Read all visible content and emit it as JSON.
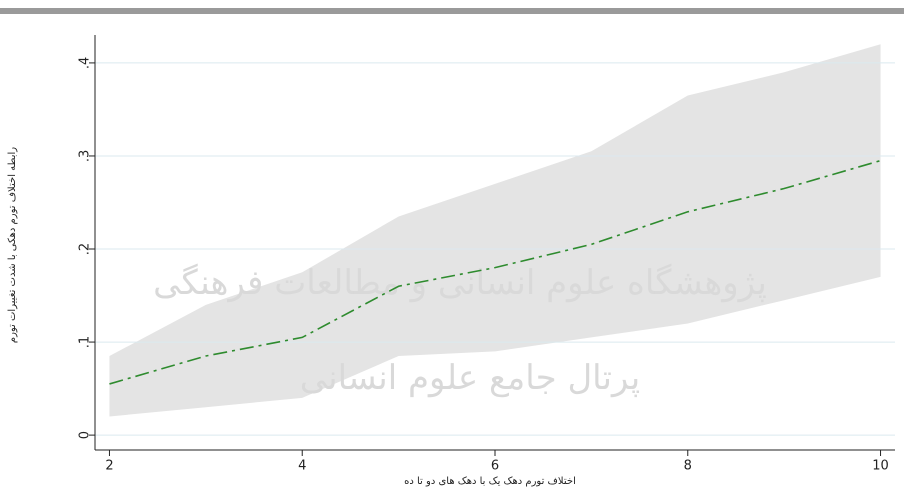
{
  "chart_data": {
    "type": "line",
    "x_label": "اختلاف تورم دهک یک با دهک های دو تا ده",
    "y_label": "رابطه اختلاف تورم دهکی با شدت تغییرات تورم",
    "annotations": [
      "پژوهشگاه علوم انسانی و مطالعات فرهنگی",
      "پرتال جامع علوم انسانی"
    ],
    "x": [
      2,
      3,
      4,
      5,
      6,
      7,
      8,
      9,
      10
    ],
    "series": [
      {
        "color": "#2e8b2e",
        "values": [
          0.055,
          0.085,
          0.105,
          0.16,
          0.18,
          0.205,
          0.24,
          0.265,
          0.295
        ]
      }
    ],
    "band": {
      "color": "#e4e4e4",
      "lower": [
        0.02,
        0.03,
        0.04,
        0.085,
        0.09,
        0.105,
        0.12,
        0.145,
        0.17
      ],
      "upper": [
        0.085,
        0.14,
        0.175,
        0.235,
        0.27,
        0.305,
        0.365,
        0.39,
        0.42
      ]
    },
    "xlim": [
      1.85,
      10.15
    ],
    "ylim": [
      -0.016,
      0.43
    ],
    "xticks": [
      2,
      4,
      6,
      8,
      10
    ],
    "yticks": [
      0,
      {
        "value": 0.1,
        "label": ".1"
      },
      {
        "value": 0.2,
        "label": ".2"
      },
      {
        "value": 0.3,
        "label": ".3"
      },
      {
        "value": 0.4,
        "label": ".4"
      }
    ],
    "grid": true
  }
}
